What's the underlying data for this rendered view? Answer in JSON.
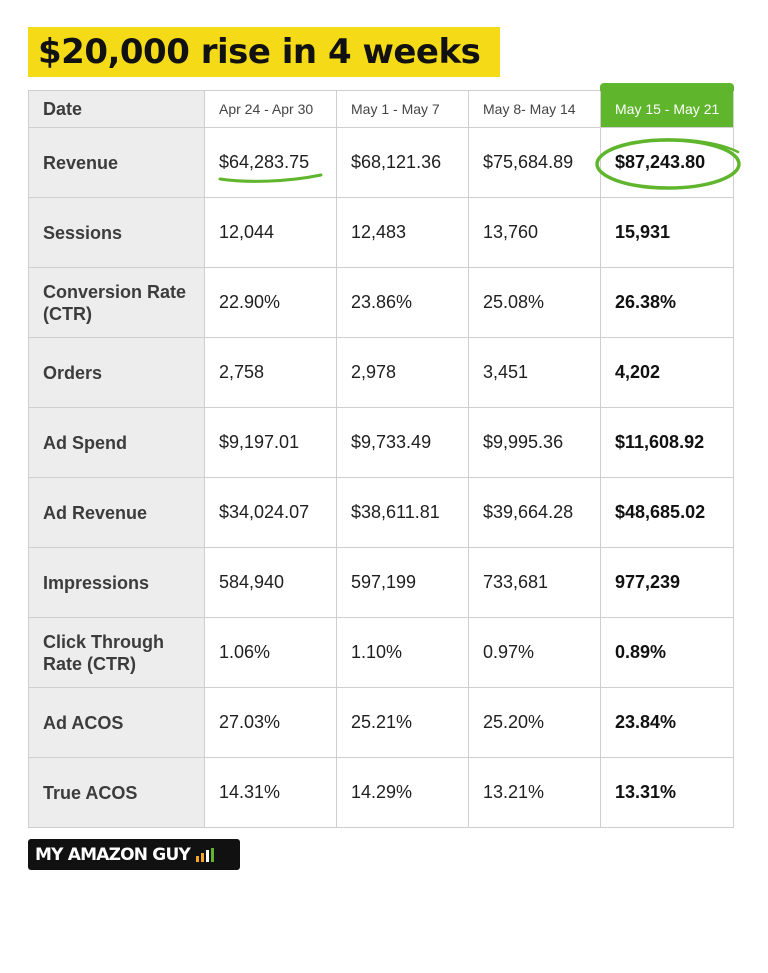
{
  "title": "$20,000 rise in 4 weeks",
  "table": {
    "header": [
      "Date",
      "Apr 24 - Apr 30",
      "May 1 - May 7",
      "May 8- May 14",
      "May 15 - May 21"
    ],
    "rows": [
      {
        "label": "Revenue",
        "values": [
          "$64,283.75",
          "$68,121.36",
          "$75,684.89",
          "$87,243.80"
        ]
      },
      {
        "label": "Sessions",
        "values": [
          "12,044",
          "12,483",
          "13,760",
          "15,931"
        ]
      },
      {
        "label": "Conversion Rate (CTR)",
        "values": [
          "22.90%",
          "23.86%",
          "25.08%",
          "26.38%"
        ]
      },
      {
        "label": "Orders",
        "values": [
          "2,758",
          "2,978",
          "3,451",
          "4,202"
        ]
      },
      {
        "label": "Ad Spend",
        "values": [
          "$9,197.01",
          "$9,733.49",
          "$9,995.36",
          "$11,608.92"
        ]
      },
      {
        "label": "Ad Revenue",
        "values": [
          "$34,024.07",
          "$38,611.81",
          "$39,664.28",
          "$48,685.02"
        ]
      },
      {
        "label": "Impressions",
        "values": [
          "584,940",
          "597,199",
          "733,681",
          "977,239"
        ]
      },
      {
        "label": "Click Through Rate (CTR)",
        "values": [
          "1.06%",
          "1.10%",
          "0.97%",
          "0.89%"
        ]
      },
      {
        "label": "Ad ACOS",
        "values": [
          "27.03%",
          "25.21%",
          "25.20%",
          "23.84%"
        ]
      },
      {
        "label": "True ACOS",
        "values": [
          "14.31%",
          "14.29%",
          "13.21%",
          "13.31%"
        ]
      }
    ]
  },
  "logo": {
    "text": "MY AMAZON GUY"
  },
  "colors": {
    "title_highlight": "#f5db17",
    "accent_green": "#5fb52c",
    "logo_bg": "#111111",
    "logo_bar_colors": [
      "#f5a623",
      "#f5a623",
      "#ffffff",
      "#5fb52c"
    ]
  },
  "icons": {
    "logo_mark": "bar-chart-icon"
  }
}
